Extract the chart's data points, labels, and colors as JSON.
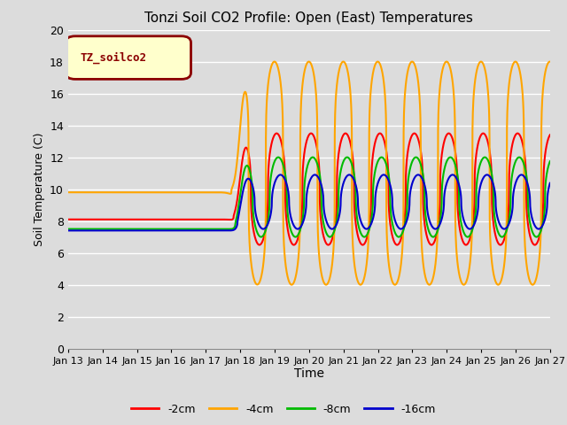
{
  "title": "Tonzi Soil CO2 Profile: Open (East) Temperatures",
  "xlabel": "Time",
  "ylabel": "Soil Temperature (C)",
  "ylim": [
    0,
    20
  ],
  "yticks": [
    0,
    2,
    4,
    6,
    8,
    10,
    12,
    14,
    16,
    18,
    20
  ],
  "xtick_labels": [
    "Jan 13",
    "Jan 14",
    "Jan 15",
    "Jan 16",
    "Jan 17",
    "Jan 18",
    "Jan 19",
    "Jan 20",
    "Jan 21",
    "Jan 22",
    "Jan 23",
    "Jan 24",
    "Jan 25",
    "Jan 26",
    "Jan 27"
  ],
  "background_color": "#dcdcdc",
  "legend_label": "TZ_soilco2",
  "legend_box_color": "#ffffcc",
  "legend_border_color": "#8b0000",
  "colors": {
    "2cm": "#ff0000",
    "4cm": "#ffa500",
    "8cm": "#00bb00",
    "16cm": "#0000cc"
  },
  "series_labels": [
    "-2cm",
    "-4cm",
    "-8cm",
    "-16cm"
  ],
  "line_width": 1.5,
  "grid_color": "#ffffff",
  "title_fontsize": 11,
  "flat_values": {
    "2cm": 8.1,
    "4cm": 9.8,
    "8cm": 7.5,
    "16cm": 7.4
  },
  "transition_day": 5.0,
  "oscillation": {
    "2cm": {
      "mean": 10.0,
      "amp": 3.5,
      "phase": 1.2
    },
    "4cm": {
      "mean": 11.0,
      "amp": 7.0,
      "phase": 1.6
    },
    "8cm": {
      "mean": 9.5,
      "amp": 2.5,
      "phase": 0.9
    },
    "16cm": {
      "mean": 9.2,
      "amp": 1.7,
      "phase": 0.5
    }
  }
}
